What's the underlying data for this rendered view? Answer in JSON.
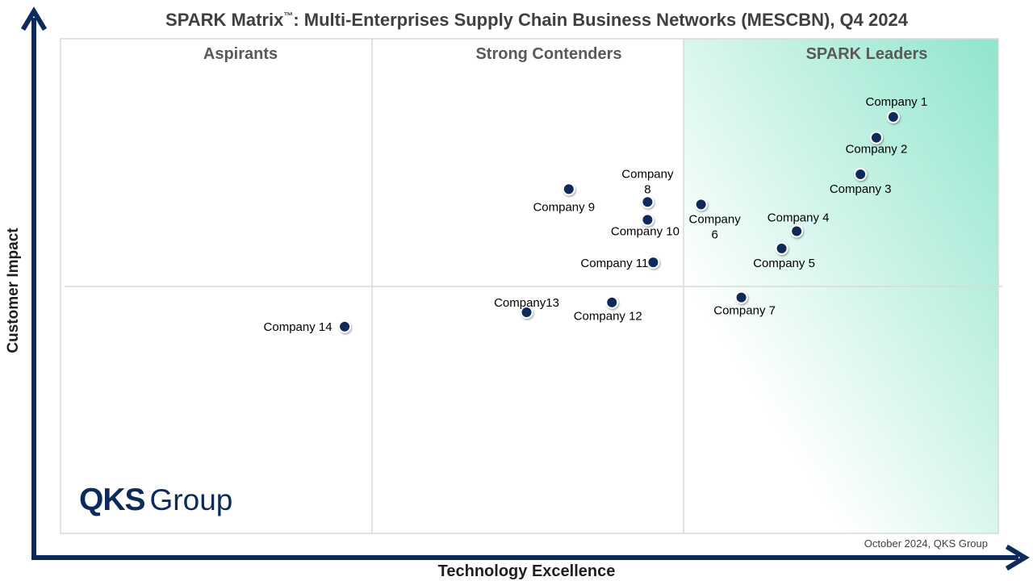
{
  "title": {
    "main": "SPARK Matrix",
    "tm": "™",
    "rest": ": Multi-Enterprises Supply Chain Business Networks (MESCBN), Q4 2024"
  },
  "axes": {
    "x": "Technology Excellence",
    "y": "Customer Impact"
  },
  "quadrants": [
    "Aspirants",
    "Strong Contenders",
    "SPARK Leaders"
  ],
  "logo": {
    "mark": "QKS",
    "word": "Group"
  },
  "source": "October 2024, QKS Group",
  "colors": {
    "marker": "#0d2b5a",
    "axis": "#0d2b5a",
    "leaders_gradient": "#8fe5cc",
    "divider": "#d9d9d9"
  },
  "chart_data": {
    "type": "scatter",
    "title": "SPARK Matrix™: Multi-Enterprises Supply Chain Business Networks (MESCBN), Q4 2024",
    "xlabel": "Technology Excellence",
    "ylabel": "Customer Impact",
    "xlim": [
      0,
      100
    ],
    "ylim": [
      0,
      100
    ],
    "x_dividers": [
      33.2,
      66.4
    ],
    "y_divider": 50,
    "grid": false,
    "points": [
      {
        "label": "Company 1",
        "x": 88.8,
        "y": 84.2
      },
      {
        "label": "Company 2",
        "x": 87.0,
        "y": 80.0
      },
      {
        "label": "Company 3",
        "x": 85.3,
        "y": 72.6
      },
      {
        "label": "Company 4",
        "x": 78.5,
        "y": 61.1
      },
      {
        "label": "Company 5",
        "x": 76.9,
        "y": 57.6
      },
      {
        "label": "Company 6",
        "x": 68.3,
        "y": 66.5
      },
      {
        "label": "Company 7",
        "x": 72.6,
        "y": 47.7
      },
      {
        "label": "Company 8",
        "x": 62.6,
        "y": 67.0
      },
      {
        "label": "Company 9",
        "x": 54.2,
        "y": 69.6
      },
      {
        "label": "Company 10",
        "x": 62.6,
        "y": 63.4
      },
      {
        "label": "Company 11",
        "x": 63.2,
        "y": 54.8
      },
      {
        "label": "Company 12",
        "x": 58.8,
        "y": 46.7
      },
      {
        "label": "Company13",
        "x": 49.7,
        "y": 44.7
      },
      {
        "label": "Company 14",
        "x": 30.3,
        "y": 41.8
      }
    ]
  }
}
